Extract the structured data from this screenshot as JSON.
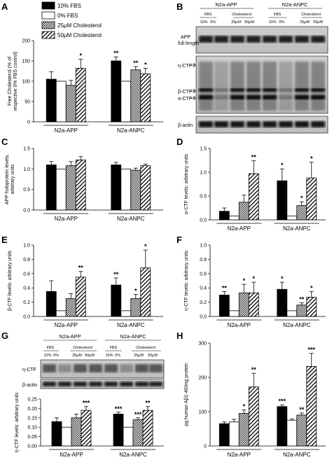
{
  "legend": [
    {
      "label": "10% FBS",
      "pattern": "black"
    },
    {
      "label": "0% FBS",
      "pattern": "white"
    },
    {
      "label": "25μM Cholesterol",
      "pattern": "dots"
    },
    {
      "label": "50μM Cholesterol",
      "pattern": "hatch"
    }
  ],
  "panel_labels": {
    "A": "A",
    "B": "B",
    "C": "C",
    "D": "D",
    "E": "E",
    "F": "F",
    "G": "G",
    "H": "H"
  },
  "blot_B": {
    "groups": [
      "N2a-APP",
      "N2a-ANPC"
    ],
    "sub": [
      "FBS",
      "Cholesterol",
      "FBS",
      "Cholesterol"
    ],
    "lanes": [
      "10%",
      "0%",
      "25μM",
      "50μM",
      "10%",
      "0%",
      "25μM",
      "50μM"
    ],
    "rows": {
      "app": "APP\nfull length",
      "eta": "η-CTF",
      "beta": "β-CTF",
      "alpha": "α-CTF",
      "actin": "β-actin"
    }
  },
  "blot_G": {
    "groups": [
      "N2a-APP",
      "N2a-ANPC"
    ],
    "sub": [
      "FBS",
      "Cholesterol",
      "FBS",
      "Cholesterol"
    ],
    "lanes": [
      "10%",
      "0%",
      "25μM",
      "50μM",
      "10%",
      "0%",
      "25μM",
      "50μM"
    ],
    "rows": {
      "eta": "η-CTF",
      "actin": "β-actin"
    }
  },
  "chart_data": [
    {
      "id": "A",
      "type": "bar",
      "categories": [
        "N2a-APP",
        "N2a-ANPC"
      ],
      "ylabel": "Free Cholesterol (% of respective 0% FBS control)",
      "ylim": [
        0,
        200
      ],
      "yticks": [
        "0",
        "50",
        "100",
        "150",
        "200"
      ],
      "series": [
        {
          "name": "10% FBS",
          "values": [
            105,
            150
          ],
          "err": [
            18,
            10
          ],
          "stars": [
            "",
            "**"
          ]
        },
        {
          "name": "0% FBS",
          "values": [
            100,
            100
          ],
          "err": [
            0,
            0
          ],
          "stars": [
            "",
            ""
          ]
        },
        {
          "name": "25μM Cholesterol",
          "values": [
            90,
            128
          ],
          "err": [
            12,
            8
          ],
          "stars": [
            "",
            "**"
          ]
        },
        {
          "name": "50μM Cholesterol",
          "values": [
            132,
            118
          ],
          "err": [
            22,
            14
          ],
          "stars": [
            "*",
            "*"
          ]
        }
      ]
    },
    {
      "id": "C",
      "type": "bar",
      "categories": [
        "N2a-APP",
        "N2a-ANPC"
      ],
      "ylabel": "APP holoprotein levels, arbitrary units",
      "ylim": [
        0,
        1.5
      ],
      "yticks": [
        "0.0",
        "0.5",
        "1.0",
        "1.5"
      ],
      "series": [
        {
          "name": "10% FBS",
          "values": [
            1.1,
            1.1
          ],
          "err": [
            0.08,
            0.06
          ],
          "stars": [
            "",
            ""
          ]
        },
        {
          "name": "0% FBS",
          "values": [
            1.0,
            1.0
          ],
          "err": [
            0,
            0
          ],
          "stars": [
            "",
            ""
          ]
        },
        {
          "name": "25μM Cholesterol",
          "values": [
            1.08,
            0.97
          ],
          "err": [
            0.1,
            0.05
          ],
          "stars": [
            "",
            ""
          ]
        },
        {
          "name": "50μM Cholesterol",
          "values": [
            1.22,
            1.08
          ],
          "err": [
            0.08,
            0.04
          ],
          "stars": [
            "",
            ""
          ]
        }
      ]
    },
    {
      "id": "D",
      "type": "bar",
      "categories": [
        "N2a-APP",
        "N2a-ANPC"
      ],
      "ylabel": "α-CTF levels: arbitrary units",
      "ylim": [
        0,
        1.5
      ],
      "yticks": [
        "0.0",
        "0.5",
        "1.0",
        "1.5"
      ],
      "series": [
        {
          "name": "10% FBS",
          "values": [
            0.18,
            0.82
          ],
          "err": [
            0.07,
            0.25
          ],
          "stars": [
            "",
            "*"
          ]
        },
        {
          "name": "0% FBS",
          "values": [
            0.08,
            0.08
          ],
          "err": [
            0,
            0
          ],
          "stars": [
            "",
            ""
          ]
        },
        {
          "name": "25μM Cholesterol",
          "values": [
            0.37,
            0.3
          ],
          "err": [
            0.15,
            0.08
          ],
          "stars": [
            "",
            "*"
          ]
        },
        {
          "name": "50μM Cholesterol",
          "values": [
            0.97,
            0.88
          ],
          "err": [
            0.27,
            0.33
          ],
          "stars": [
            "**",
            "*"
          ]
        }
      ]
    },
    {
      "id": "E",
      "type": "bar",
      "categories": [
        "N2a-APP",
        "N2a-ANPC"
      ],
      "ylabel": "β-CTF levels: arbitrary units",
      "ylim": [
        0,
        1.0
      ],
      "yticks": [
        "0.0",
        "0.2",
        "0.4",
        "0.6",
        "0.8",
        "1.0"
      ],
      "series": [
        {
          "name": "10% FBS",
          "values": [
            0.35,
            0.44
          ],
          "err": [
            0.15,
            0.1
          ],
          "stars": [
            "",
            "**"
          ]
        },
        {
          "name": "0% FBS",
          "values": [
            0.08,
            0.08
          ],
          "err": [
            0,
            0
          ],
          "stars": [
            "",
            ""
          ]
        },
        {
          "name": "25μM Cholesterol",
          "values": [
            0.25,
            0.25
          ],
          "err": [
            0.07,
            0.06
          ],
          "stars": [
            "",
            "*"
          ]
        },
        {
          "name": "50μM Cholesterol",
          "values": [
            0.55,
            0.68
          ],
          "err": [
            0.08,
            0.25
          ],
          "stars": [
            "**",
            "*"
          ]
        }
      ]
    },
    {
      "id": "F",
      "type": "bar",
      "categories": [
        "N2a-APP",
        "N2a-ANPC"
      ],
      "ylabel": "η-CTF levels: arbitrary units",
      "ylim": [
        0,
        1.0
      ],
      "yticks": [
        "0.0",
        "0.2",
        "0.4",
        "0.6",
        "0.8",
        "1.0"
      ],
      "series": [
        {
          "name": "10% FBS",
          "values": [
            0.3,
            0.38
          ],
          "err": [
            0.05,
            0.1
          ],
          "stars": [
            "**",
            "*"
          ]
        },
        {
          "name": "0% FBS",
          "values": [
            0.08,
            0.08
          ],
          "err": [
            0,
            0
          ],
          "stars": [
            "",
            ""
          ]
        },
        {
          "name": "25μM Cholesterol",
          "values": [
            0.33,
            0.16
          ],
          "err": [
            0.12,
            0.03
          ],
          "stars": [
            "*",
            "**"
          ]
        },
        {
          "name": "50μM Cholesterol",
          "values": [
            0.33,
            0.27
          ],
          "err": [
            0.15,
            0.08
          ],
          "stars": [
            "*",
            "*"
          ]
        }
      ]
    },
    {
      "id": "G",
      "type": "bar",
      "categories": [
        "N2a-APP",
        "N2a-ANPC"
      ],
      "ylabel": "η-CTF levels: arbitrary units",
      "ylim": [
        0,
        0.25
      ],
      "yticks": [
        "0.00",
        "0.05",
        "0.10",
        "0.15",
        "0.20",
        "0.25"
      ],
      "series": [
        {
          "name": "10% FBS",
          "values": [
            0.13,
            0.17
          ],
          "err": [
            0.02,
            0.01
          ],
          "stars": [
            "",
            "***"
          ]
        },
        {
          "name": "0% FBS",
          "values": [
            0.1,
            0.1
          ],
          "err": [
            0,
            0
          ],
          "stars": [
            "",
            ""
          ]
        },
        {
          "name": "25μM Cholesterol",
          "values": [
            0.15,
            0.14
          ],
          "err": [
            0.02,
            0.01
          ],
          "stars": [
            "",
            "***"
          ]
        },
        {
          "name": "50μM Cholesterol",
          "values": [
            0.19,
            0.19
          ],
          "err": [
            0.02,
            0.02
          ],
          "stars": [
            "***",
            "**"
          ]
        }
      ]
    },
    {
      "id": "H",
      "type": "bar",
      "categories": [
        "N2a-APP",
        "N2a-ANPC"
      ],
      "ylabel": "pg human Aβ1-40/mg protein",
      "ylim": [
        0,
        300
      ],
      "yticks": [
        "0",
        "100",
        "200",
        "300"
      ],
      "series": [
        {
          "name": "10% FBS",
          "values": [
            65,
            115
          ],
          "err": [
            5,
            5
          ],
          "stars": [
            "",
            "***"
          ]
        },
        {
          "name": "0% FBS",
          "values": [
            70,
            75
          ],
          "err": [
            8,
            4
          ],
          "stars": [
            "",
            ""
          ]
        },
        {
          "name": "25μM Cholesterol",
          "values": [
            95,
            90
          ],
          "err": [
            10,
            6
          ],
          "stars": [
            "*",
            "**"
          ]
        },
        {
          "name": "50μM Cholesterol",
          "values": [
            172,
            232
          ],
          "err": [
            40,
            38
          ],
          "stars": [
            "**",
            "***"
          ]
        }
      ]
    }
  ]
}
